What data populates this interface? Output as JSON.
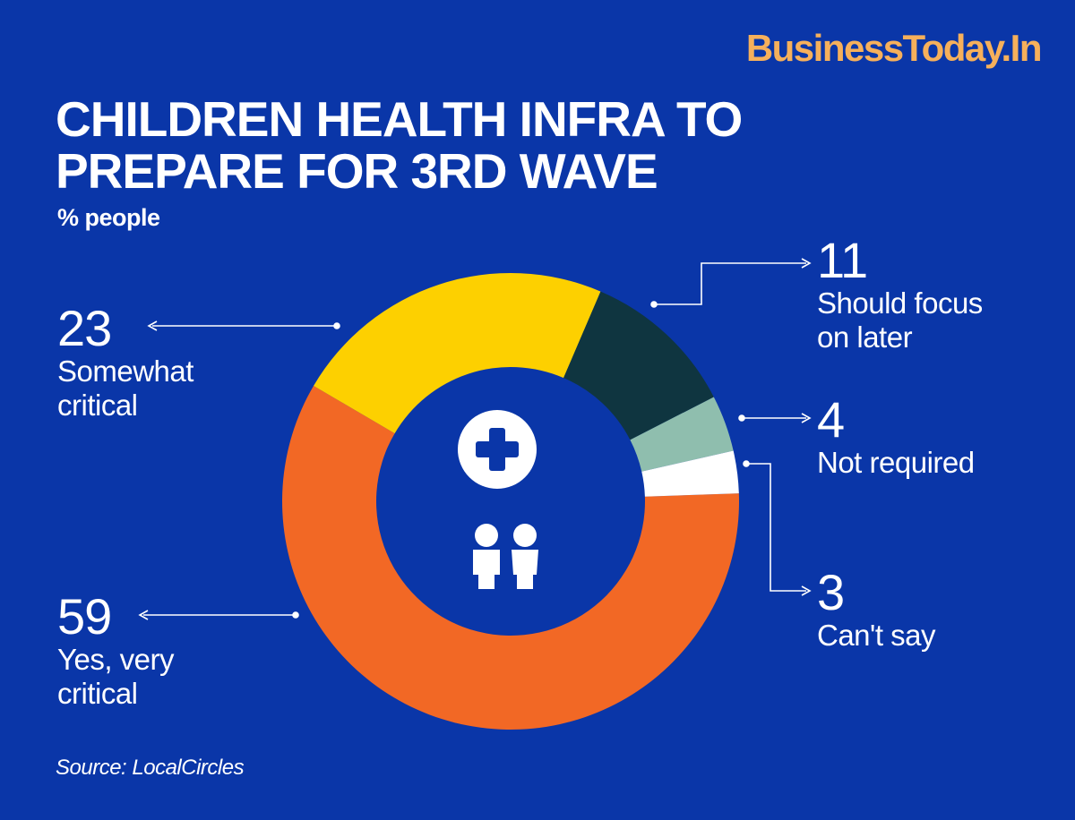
{
  "brand": "BusinessToday.In",
  "title_line1": "CHILDREN HEALTH INFRA TO",
  "title_line2": "PREPARE FOR 3RD WAVE",
  "subtitle": "% people",
  "source": "Source: LocalCircles",
  "colors": {
    "background": "#0A36A8",
    "brand": "#F6B05B",
    "yes_very_critical": "#F26825",
    "somewhat_critical": "#FDD000",
    "should_focus_later": "#0F3540",
    "not_required": "#8FBEAE",
    "cant_say": "#FFFFFF"
  },
  "icons": [
    "medical-cross-icon",
    "children-icon"
  ],
  "chart_data": {
    "type": "pie",
    "variant": "donut",
    "title": "CHILDREN HEALTH INFRA TO PREPARE FOR 3RD WAVE",
    "unit": "% people",
    "categories": [
      "Yes, very critical",
      "Somewhat critical",
      "Should focus on later",
      "Not required",
      "Can't say"
    ],
    "values": [
      59,
      23,
      11,
      4,
      3
    ],
    "labels": [
      {
        "value": "59",
        "line1": "Yes, very",
        "line2": "critical"
      },
      {
        "value": "23",
        "line1": "Somewhat",
        "line2": "critical"
      },
      {
        "value": "11",
        "line1": "Should focus",
        "line2": "on later"
      },
      {
        "value": "4",
        "line1": "Not required",
        "line2": ""
      },
      {
        "value": "3",
        "line1": "Can't say",
        "line2": ""
      }
    ]
  }
}
